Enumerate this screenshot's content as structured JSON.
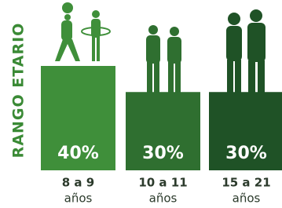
{
  "chart_data": {
    "type": "bar",
    "axis_title": "RANGO ETARIO",
    "categories": [
      "8 a 9",
      "10 a 11",
      "15 a 21"
    ],
    "category_sublabels": [
      "años",
      "años",
      "años"
    ],
    "values": [
      40,
      30,
      30
    ],
    "value_labels": [
      "40%",
      "30%",
      "30%"
    ],
    "colors": [
      "#3f8f3a",
      "#2f6f30",
      "#1f5226"
    ],
    "ylim": [
      0,
      40
    ]
  }
}
